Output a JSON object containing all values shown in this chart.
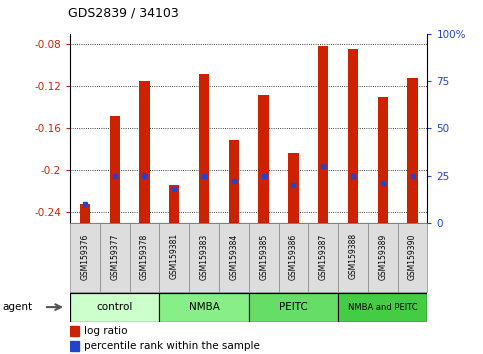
{
  "title": "GDS2839 / 34103",
  "samples": [
    "GSM159376",
    "GSM159377",
    "GSM159378",
    "GSM159381",
    "GSM159383",
    "GSM159384",
    "GSM159385",
    "GSM159386",
    "GSM159387",
    "GSM159388",
    "GSM159389",
    "GSM159390"
  ],
  "log_ratios": [
    -0.232,
    -0.148,
    -0.115,
    -0.214,
    -0.108,
    -0.171,
    -0.128,
    -0.183,
    -0.082,
    -0.085,
    -0.13,
    -0.112
  ],
  "percentile_ranks": [
    10,
    25,
    25,
    18,
    25,
    22,
    25,
    20,
    30,
    25,
    21,
    25
  ],
  "groups": [
    {
      "label": "control",
      "start": 0,
      "end": 3,
      "color": "#ccffcc"
    },
    {
      "label": "NMBA",
      "start": 3,
      "end": 6,
      "color": "#88ee88"
    },
    {
      "label": "PEITC",
      "start": 6,
      "end": 9,
      "color": "#66dd66"
    },
    {
      "label": "NMBA and PEITC",
      "start": 9,
      "end": 12,
      "color": "#44cc44"
    }
  ],
  "ylim_left": [
    -0.25,
    -0.07
  ],
  "ylim_right": [
    0,
    100
  ],
  "yticks_left": [
    -0.24,
    -0.2,
    -0.16,
    -0.12,
    -0.08
  ],
  "yticks_right": [
    0,
    25,
    50,
    75,
    100
  ],
  "bar_color": "#cc2200",
  "pct_color": "#2244cc",
  "tick_color_left": "#cc2200",
  "tick_color_right": "#2244cc",
  "bar_width": 0.35
}
